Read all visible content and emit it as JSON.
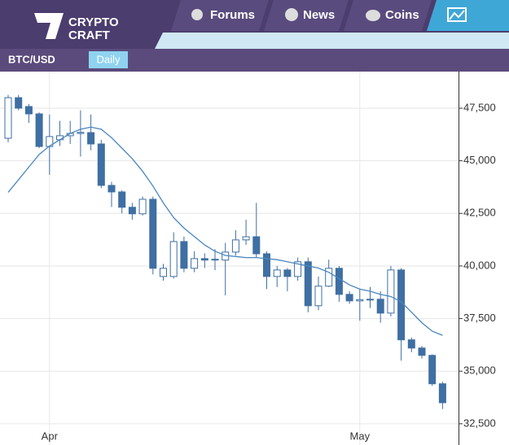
{
  "header": {
    "logo": [
      "CRYPTO",
      "CRAFT"
    ],
    "tabs": [
      "Forums",
      "News",
      "Coins"
    ]
  },
  "toolbar": {
    "symbol": "BTC/USD",
    "timeframe": "Daily"
  },
  "chart_data": {
    "type": "candlestick",
    "categories": [
      null,
      null,
      null,
      null,
      "Apr",
      null,
      null,
      null,
      null,
      null,
      null,
      null,
      null,
      null,
      null,
      null,
      null,
      null,
      null,
      null,
      null,
      null,
      null,
      null,
      null,
      null,
      null,
      null,
      null,
      null,
      null,
      null,
      null,
      null,
      "May",
      null,
      null,
      null,
      null,
      null,
      null,
      null,
      null
    ],
    "open": [
      46070,
      48000,
      47580,
      47230,
      45680,
      46000,
      46190,
      46300,
      46340,
      45800,
      43830,
      43520,
      42790,
      42480,
      43170,
      39500,
      39500,
      41160,
      39890,
      40350,
      40280,
      40280,
      40660,
      41240,
      41390,
      40580,
      39500,
      39810,
      39500,
      40200,
      38110,
      39040,
      39890,
      38650,
      38340,
      38400,
      38420,
      37760,
      39810,
      36490,
      36100,
      35750,
      34400
    ],
    "high": [
      48130,
      48130,
      47700,
      47300,
      47200,
      46900,
      46900,
      47400,
      47200,
      46000,
      44000,
      43600,
      43000,
      43300,
      43300,
      40100,
      41600,
      41400,
      40700,
      40600,
      40800,
      41100,
      41700,
      42200,
      43000,
      40700,
      40000,
      39900,
      40400,
      40400,
      39500,
      40300,
      40000,
      38800,
      38900,
      39000,
      38800,
      40000,
      39900,
      36600,
      36200,
      35800,
      34500
    ],
    "low": [
      45880,
      47400,
      46800,
      45600,
      44330,
      45700,
      45800,
      45200,
      45500,
      43700,
      42800,
      42500,
      42200,
      42400,
      39600,
      39300,
      39400,
      39700,
      39700,
      39900,
      39800,
      38600,
      40500,
      41000,
      40400,
      38900,
      39000,
      38800,
      39300,
      37800,
      37900,
      39000,
      38300,
      38200,
      37400,
      38000,
      37300,
      37600,
      35500,
      35900,
      35600,
      34300,
      33200
    ],
    "close": [
      48000,
      47500,
      47230,
      45680,
      46150,
      46190,
      46300,
      46350,
      45800,
      43830,
      43520,
      42790,
      42480,
      43170,
      39890,
      39890,
      41160,
      39890,
      40350,
      40280,
      40320,
      40660,
      41240,
      41390,
      40580,
      39500,
      39810,
      39500,
      40200,
      38110,
      39040,
      39890,
      38650,
      38340,
      38400,
      38420,
      37760,
      39810,
      36490,
      36100,
      35750,
      34400,
      33500
    ],
    "color": "#3f6fa3",
    "up_color": "#ffffff",
    "ma": {
      "values": [
        43500,
        44100,
        44700,
        45300,
        45700,
        46000,
        46300,
        46500,
        46600,
        46500,
        46100,
        45600,
        45100,
        44500,
        43800,
        43000,
        42300,
        41800,
        41400,
        41000,
        40700,
        40500,
        40450,
        40400,
        40400,
        40350,
        40300,
        40200,
        40100,
        40000,
        39900,
        39700,
        39400,
        39100,
        38900,
        38800,
        38650,
        38550,
        38300,
        37800,
        37300,
        36900,
        36700
      ],
      "color": "#4a86c0"
    },
    "ylim": [
      31490,
      49240
    ],
    "yticks": [
      {
        "value": 32500,
        "label": "32,500"
      },
      {
        "value": 35000,
        "label": "35,000"
      },
      {
        "value": 37500,
        "label": "37,500"
      },
      {
        "value": 40000,
        "label": "40,000"
      },
      {
        "value": 42500,
        "label": "42,500"
      },
      {
        "value": 45000,
        "label": "45,000"
      },
      {
        "value": 47500,
        "label": "47,500"
      }
    ],
    "grid": true
  }
}
